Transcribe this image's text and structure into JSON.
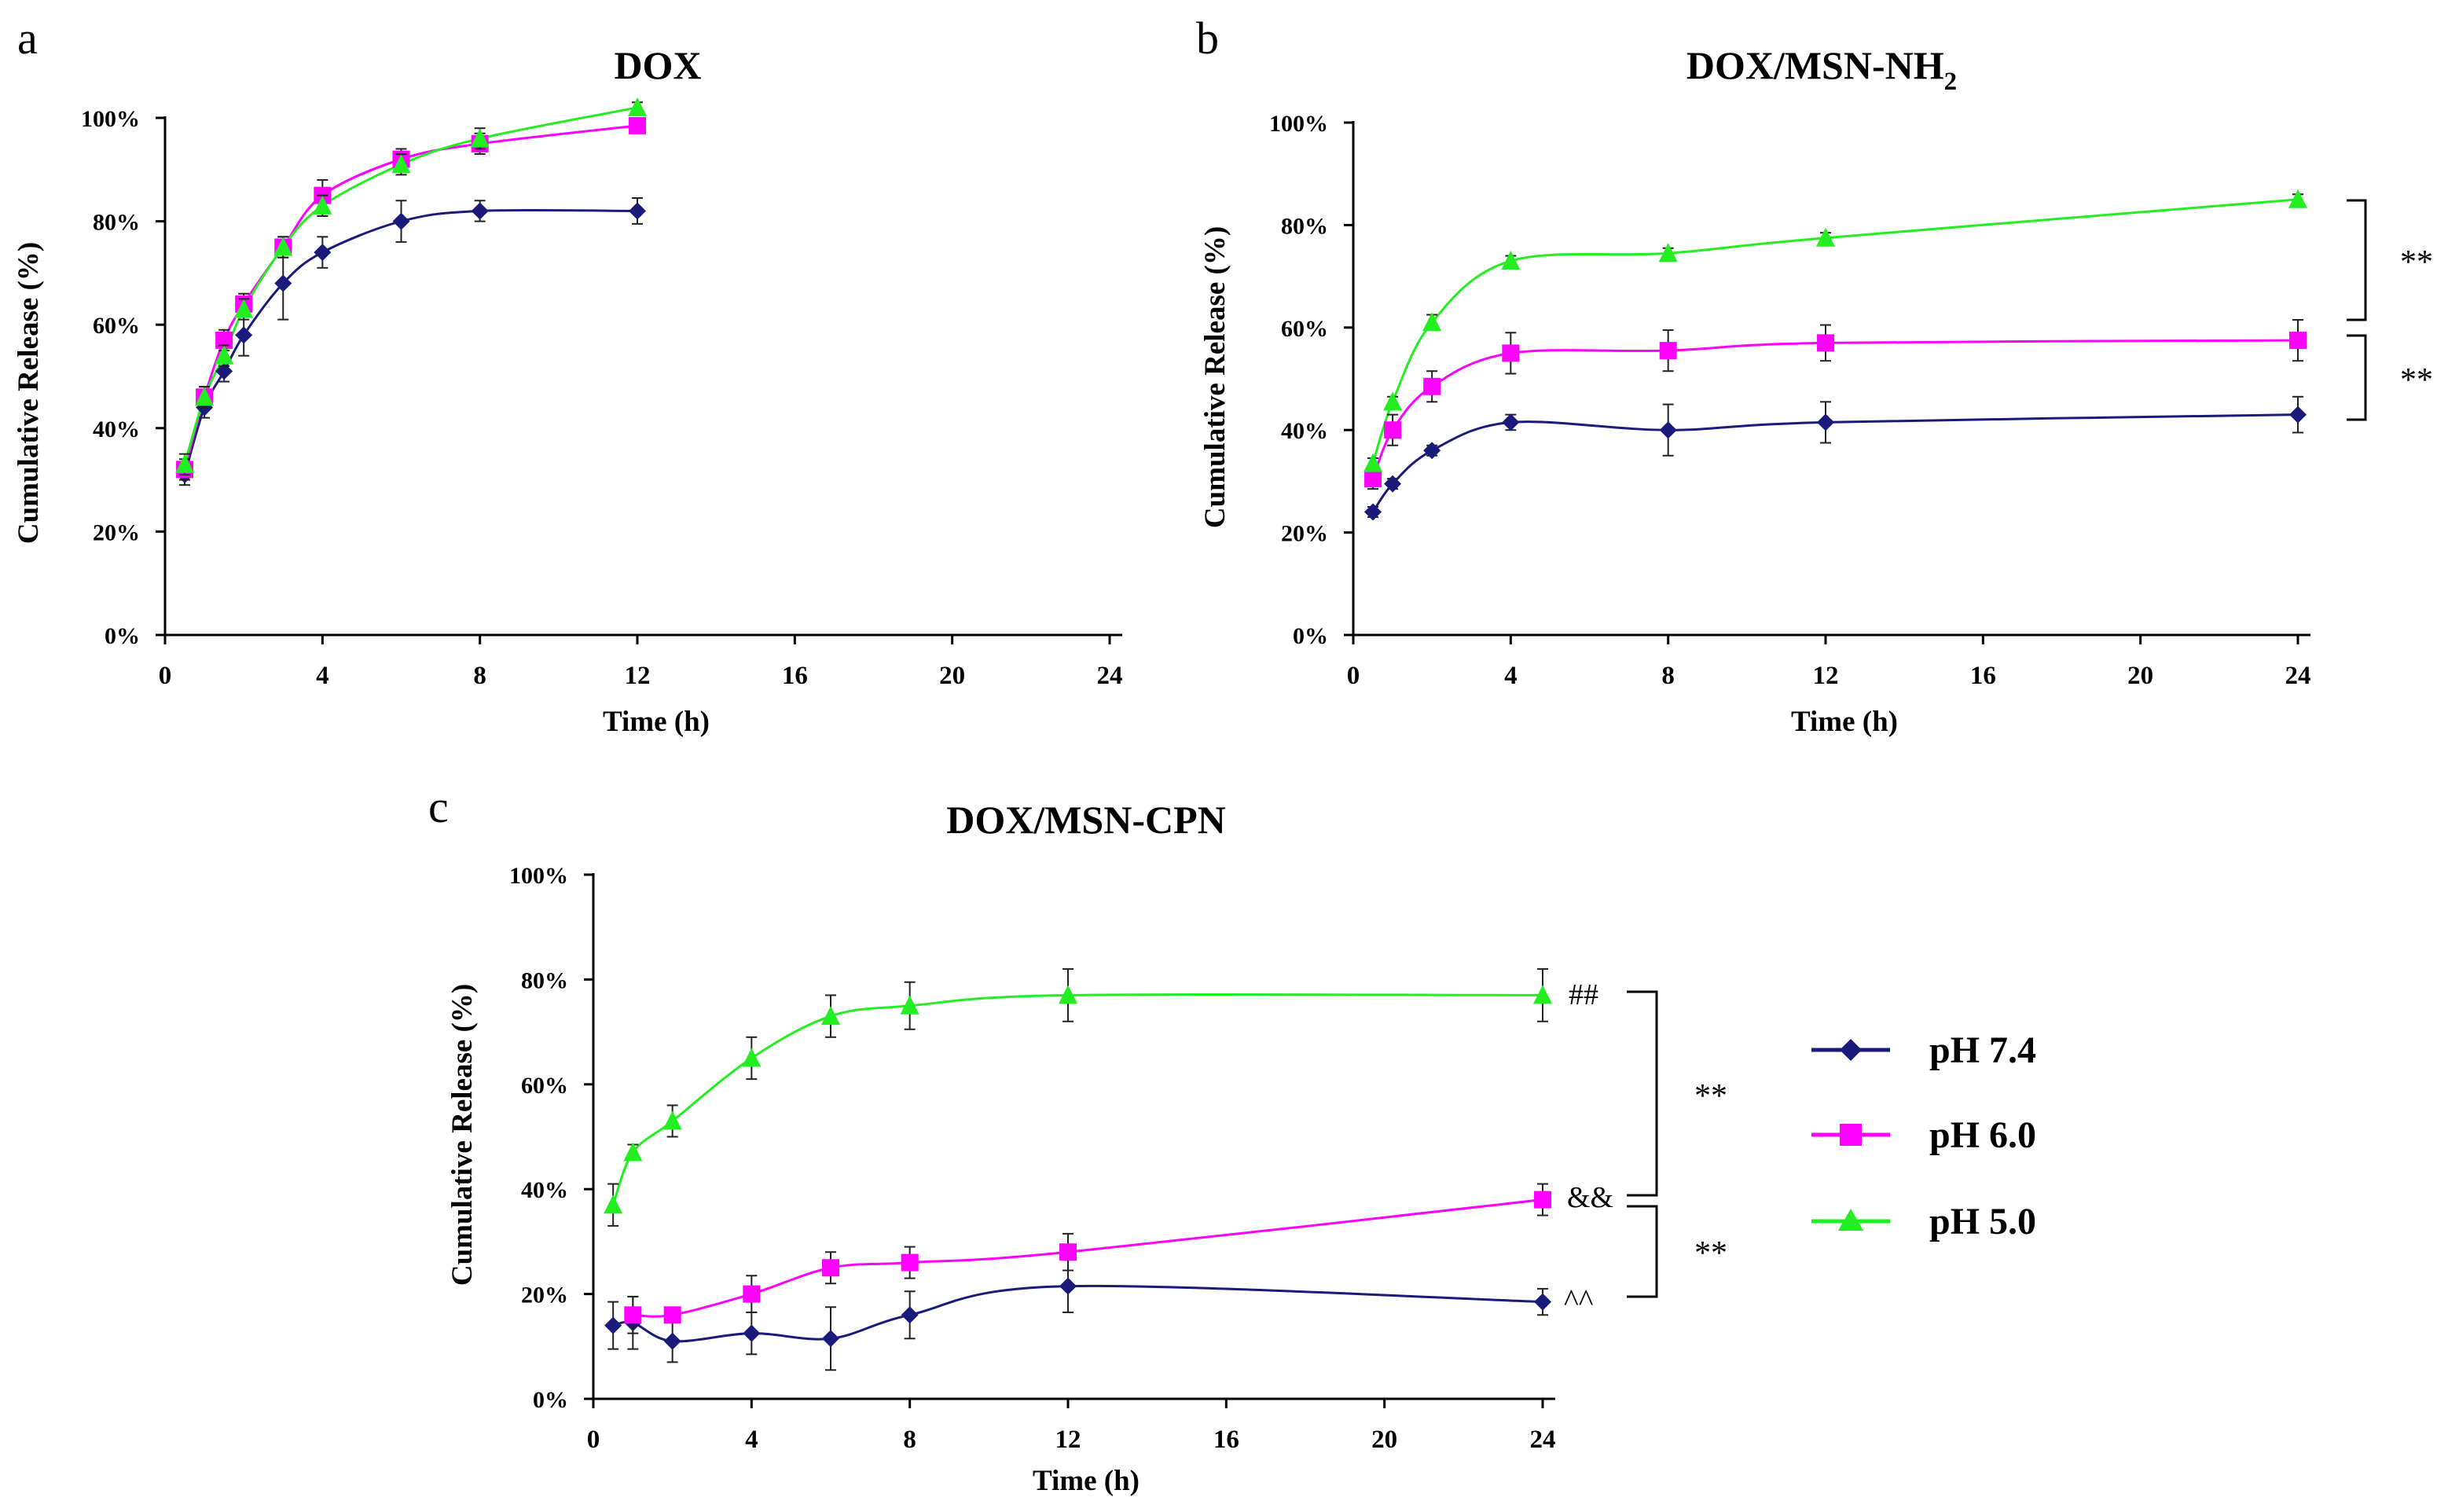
{
  "figure": {
    "legend": [
      {
        "label": "pH 7.4",
        "color": "#1a1a7a",
        "marker": "diamond"
      },
      {
        "label": "pH 6.0",
        "color": "#ff00ff",
        "marker": "square"
      },
      {
        "label": "pH 5.0",
        "color": "#22ee22",
        "marker": "triangle"
      }
    ]
  },
  "chart_data": [
    {
      "panel": "a",
      "type": "line",
      "title": "DOX",
      "xlabel": "Time (h)",
      "ylabel": "Cumulative Release (%)",
      "xlim": [
        0,
        24
      ],
      "ylim": [
        0,
        100
      ],
      "xticks": [
        "0",
        "4",
        "8",
        "12",
        "16",
        "20",
        "24"
      ],
      "yticks": [
        "0%",
        "20%",
        "40%",
        "60%",
        "80%",
        "100%"
      ],
      "series": [
        {
          "name": "pH 7.4",
          "color": "#1a1a7a",
          "marker": "diamond",
          "x": [
            0.5,
            1,
            1.5,
            2,
            3,
            4,
            6,
            8,
            12
          ],
          "y": [
            31,
            44,
            51,
            58,
            68,
            74,
            80,
            82,
            82
          ],
          "err": [
            2,
            2,
            2,
            4,
            7,
            3,
            4,
            2,
            2.5
          ]
        },
        {
          "name": "pH 6.0",
          "color": "#ff00ff",
          "marker": "square",
          "x": [
            0.5,
            1,
            1.5,
            2,
            3,
            4,
            6,
            8,
            12
          ],
          "y": [
            32,
            46,
            57,
            64,
            75,
            85,
            92,
            95,
            98.5
          ],
          "err": [
            2,
            2,
            2,
            2,
            2,
            3,
            2,
            2,
            1
          ]
        },
        {
          "name": "pH 5.0",
          "color": "#22ee22",
          "marker": "triangle",
          "x": [
            0.5,
            1,
            1.5,
            2,
            3,
            4,
            6,
            8,
            12
          ],
          "y": [
            33,
            46,
            54,
            63,
            75,
            83,
            91,
            96,
            102
          ],
          "err": [
            2,
            2,
            2,
            2,
            2,
            2,
            2,
            2,
            1
          ]
        }
      ],
      "annotations": []
    },
    {
      "panel": "b",
      "type": "line",
      "title": "DOX/MSN-NH",
      "title_sub": "2",
      "xlabel": "Time (h)",
      "ylabel": "Cumulative Release (%)",
      "xlim": [
        0,
        24
      ],
      "ylim": [
        0,
        100
      ],
      "xticks": [
        "0",
        "4",
        "8",
        "12",
        "16",
        "20",
        "24"
      ],
      "yticks": [
        "0%",
        "20%",
        "40%",
        "60%",
        "80%",
        "100%"
      ],
      "series": [
        {
          "name": "pH 7.4",
          "color": "#1a1a7a",
          "marker": "diamond",
          "x": [
            0.5,
            1,
            2,
            4,
            8,
            12,
            24
          ],
          "y": [
            24,
            29.5,
            36,
            41.5,
            40,
            41.5,
            43
          ],
          "err": [
            1,
            1,
            1,
            1.5,
            5,
            4,
            3.5
          ]
        },
        {
          "name": "pH 6.0",
          "color": "#ff00ff",
          "marker": "square",
          "x": [
            0.5,
            1,
            2,
            4,
            8,
            12,
            24
          ],
          "y": [
            30.5,
            40,
            48.5,
            55,
            55.5,
            57,
            57.5
          ],
          "err": [
            2,
            3,
            3,
            4,
            4,
            3.5,
            4
          ]
        },
        {
          "name": "pH 5.0",
          "color": "#22ee22",
          "marker": "triangle",
          "x": [
            0.5,
            1,
            2,
            4,
            8,
            12,
            24
          ],
          "y": [
            33.5,
            45.5,
            61,
            73,
            74.5,
            77.5,
            85
          ],
          "err": [
            1,
            1,
            1.5,
            1,
            1,
            1,
            1
          ]
        }
      ],
      "annotations": [
        "**",
        "**"
      ]
    },
    {
      "panel": "c",
      "type": "line",
      "title": "DOX/MSN-CPN",
      "xlabel": "Time (h)",
      "ylabel": "Cumulative Release (%)",
      "xlim": [
        0,
        24
      ],
      "ylim": [
        0,
        100
      ],
      "xticks": [
        "0",
        "4",
        "8",
        "12",
        "16",
        "20",
        "24"
      ],
      "yticks": [
        "0%",
        "20%",
        "40%",
        "60%",
        "80%",
        "100%"
      ],
      "series": [
        {
          "name": "pH 7.4",
          "color": "#1a1a7a",
          "marker": "diamond",
          "x": [
            0.5,
            1,
            2,
            4,
            6,
            8,
            12,
            24
          ],
          "y": [
            14,
            14.5,
            11,
            12.5,
            11.5,
            16,
            21.5,
            18.5
          ],
          "err": [
            4.5,
            5,
            4,
            4,
            6,
            4.5,
            5,
            2.5
          ]
        },
        {
          "name": "pH 6.0",
          "color": "#ff00ff",
          "marker": "square",
          "x": [
            1,
            2,
            4,
            6,
            8,
            12,
            24
          ],
          "y": [
            16,
            16,
            20,
            25,
            26,
            28,
            38
          ],
          "err": [
            3.5,
            1,
            3.5,
            3,
            3,
            3.5,
            3
          ]
        },
        {
          "name": "pH 5.0",
          "color": "#22ee22",
          "marker": "triangle",
          "x": [
            0.5,
            1,
            2,
            4,
            6,
            8,
            12,
            24
          ],
          "y": [
            37,
            47,
            53,
            65,
            73,
            75,
            77,
            77
          ],
          "err": [
            4,
            1.5,
            3,
            4,
            4,
            4.5,
            5,
            5
          ]
        }
      ],
      "annotations": [
        "##",
        "&&",
        "^^",
        "**",
        "**"
      ]
    }
  ]
}
